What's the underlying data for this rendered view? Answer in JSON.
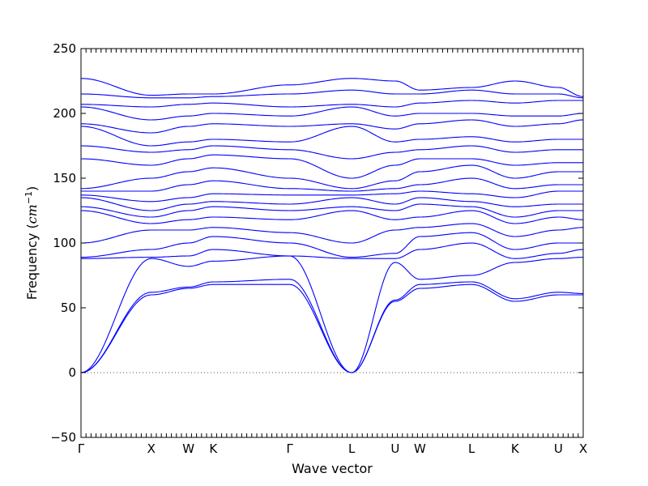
{
  "chart_data": {
    "type": "line",
    "title": "",
    "xlabel": "Wave vector",
    "ylabel_text": "Frequency (",
    "ylabel_unit_base": "cm",
    "ylabel_unit_exp": "−1",
    "ylabel_close": ")",
    "ylim": [
      -50,
      250
    ],
    "yticks": [
      -50,
      0,
      50,
      100,
      150,
      200,
      250
    ],
    "ytick_labels": [
      "−50",
      "0",
      "50",
      "100",
      "150",
      "200",
      "250"
    ],
    "xlim": [
      0,
      12.15
    ],
    "high_symmetry_points": [
      {
        "label": "Γ",
        "x": 0.0
      },
      {
        "label": "X",
        "x": 1.7
      },
      {
        "label": "W",
        "x": 2.6
      },
      {
        "label": "K",
        "x": 3.2
      },
      {
        "label": "Γ",
        "x": 5.05
      },
      {
        "label": "L",
        "x": 6.55
      },
      {
        "label": "U",
        "x": 7.6
      },
      {
        "label": "W",
        "x": 8.2
      },
      {
        "label": "L",
        "x": 9.45
      },
      {
        "label": "K",
        "x": 10.5
      },
      {
        "label": "U",
        "x": 11.55
      },
      {
        "label": "X",
        "x": 12.15
      }
    ],
    "zero_line": 0,
    "line_color": "#0000ff",
    "bands": [
      [
        0,
        60,
        65,
        68,
        68,
        0,
        55,
        65,
        68,
        55,
        60,
        60
      ],
      [
        0,
        62,
        66,
        70,
        72,
        0,
        56,
        68,
        70,
        57,
        62,
        61
      ],
      [
        0,
        88,
        82,
        86,
        90,
        0,
        85,
        72,
        75,
        85,
        88,
        89
      ],
      [
        88,
        89,
        90,
        95,
        90,
        88,
        88,
        95,
        100,
        88,
        92,
        95
      ],
      [
        89,
        95,
        100,
        105,
        100,
        89,
        92,
        105,
        108,
        95,
        100,
        100
      ],
      [
        100,
        110,
        110,
        112,
        108,
        100,
        110,
        112,
        115,
        105,
        110,
        112
      ],
      [
        125,
        115,
        118,
        120,
        118,
        125,
        118,
        120,
        125,
        115,
        120,
        118
      ],
      [
        128,
        120,
        125,
        128,
        125,
        128,
        125,
        130,
        128,
        120,
        125,
        125
      ],
      [
        135,
        125,
        130,
        132,
        130,
        135,
        130,
        135,
        132,
        128,
        130,
        130
      ],
      [
        137,
        132,
        135,
        138,
        137,
        137,
        138,
        140,
        138,
        135,
        140,
        140
      ],
      [
        140,
        140,
        145,
        148,
        142,
        140,
        142,
        145,
        150,
        142,
        145,
        145
      ],
      [
        142,
        150,
        155,
        158,
        150,
        142,
        148,
        155,
        160,
        150,
        155,
        155
      ],
      [
        165,
        160,
        165,
        168,
        165,
        150,
        160,
        165,
        165,
        160,
        162,
        162
      ],
      [
        175,
        170,
        172,
        175,
        172,
        165,
        170,
        172,
        175,
        170,
        172,
        172
      ],
      [
        190,
        175,
        178,
        180,
        178,
        190,
        178,
        180,
        182,
        178,
        180,
        180
      ],
      [
        192,
        185,
        190,
        192,
        190,
        192,
        188,
        192,
        195,
        190,
        192,
        195
      ],
      [
        205,
        195,
        198,
        200,
        198,
        205,
        198,
        200,
        200,
        198,
        198,
        200
      ],
      [
        207,
        205,
        207,
        208,
        205,
        207,
        205,
        208,
        210,
        208,
        210,
        210
      ],
      [
        215,
        212,
        212,
        213,
        215,
        218,
        215,
        215,
        218,
        215,
        215,
        212
      ],
      [
        227,
        214,
        215,
        215,
        222,
        227,
        225,
        218,
        220,
        225,
        220,
        213
      ]
    ]
  }
}
